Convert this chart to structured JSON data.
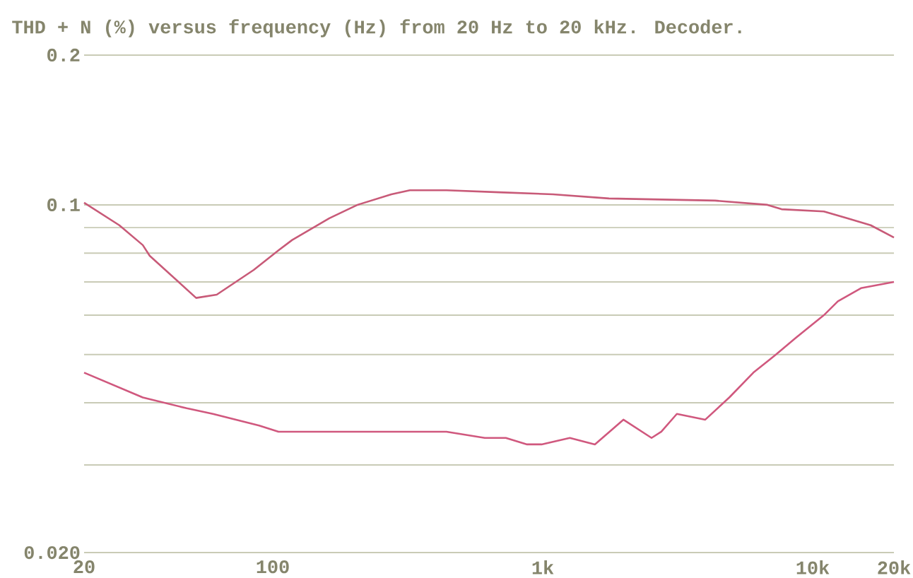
{
  "chart_data": {
    "type": "line",
    "title": "THD + N (%) versus frequency (Hz) from 20 Hz to 20 kHz. Decoder.",
    "log": "xy",
    "xlim": [
      20,
      20000
    ],
    "ylim": [
      0.02,
      0.2
    ],
    "xticks": [
      20,
      100,
      {
        "value": 1000,
        "label": "1k"
      },
      {
        "value": 10000,
        "label": "10k"
      },
      {
        "value": 20000,
        "label": "20k"
      }
    ],
    "yticks": [
      {
        "value": 0.02,
        "label": "0.020"
      },
      {
        "value": 0.03,
        "label": null
      },
      {
        "value": 0.04,
        "label": null
      },
      {
        "value": 0.05,
        "label": null
      },
      {
        "value": 0.06,
        "label": null
      },
      {
        "value": 0.07,
        "label": null
      },
      {
        "value": 0.08,
        "label": null
      },
      {
        "value": 0.09,
        "label": null
      },
      0.1,
      0.2
    ],
    "grid": "y",
    "series": [
      {
        "color": "#c85a78",
        "x": [
          20,
          27,
          33,
          35,
          52,
          62,
          85,
          105,
          118,
          162,
          206,
          275,
          322,
          440,
          690,
          1090,
          1760,
          4350,
          6800,
          7670,
          11000,
          13400,
          16400,
          20000
        ],
        "values": [
          0.101,
          0.091,
          0.083,
          0.079,
          0.065,
          0.066,
          0.074,
          0.081,
          0.085,
          0.094,
          0.1,
          0.105,
          0.107,
          0.107,
          0.106,
          0.105,
          0.103,
          0.102,
          0.1,
          0.098,
          0.097,
          0.094,
          0.091,
          0.086
        ]
      },
      {
        "color": "#d0587e",
        "x": [
          20,
          33,
          48,
          60,
          89,
          105,
          162,
          224,
          440,
          610,
          730,
          875,
          990,
          1260,
          1560,
          1990,
          2530,
          2750,
          3140,
          4000,
          4910,
          6030,
          7310,
          8650,
          11000,
          12400,
          15100,
          20000
        ],
        "values": [
          0.046,
          0.041,
          0.039,
          0.038,
          0.036,
          0.035,
          0.035,
          0.035,
          0.035,
          0.034,
          0.034,
          0.033,
          0.033,
          0.034,
          0.033,
          0.037,
          0.034,
          0.035,
          0.038,
          0.037,
          0.041,
          0.046,
          0.05,
          0.054,
          0.06,
          0.064,
          0.068,
          0.07
        ]
      }
    ]
  }
}
